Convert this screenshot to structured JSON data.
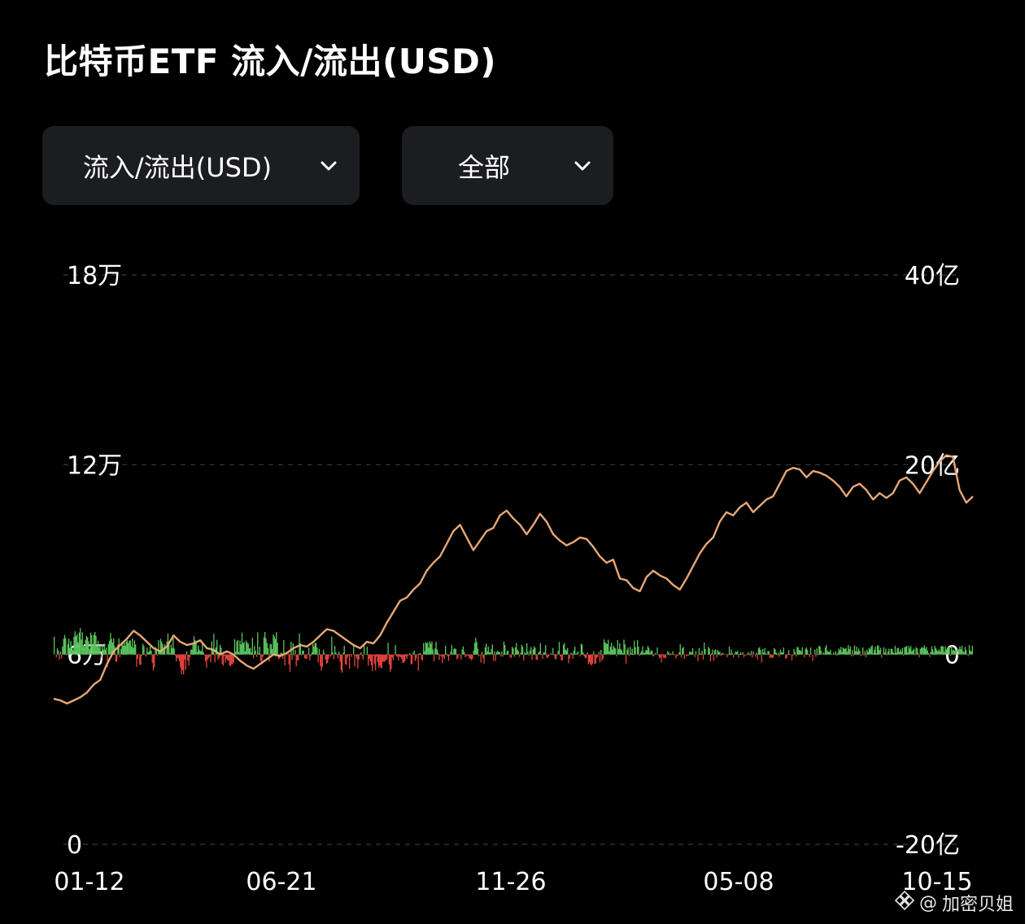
{
  "header": {
    "title": "比特币ETF 流入/流出(USD)"
  },
  "filters": {
    "metric_label": "流入/流出(USD)",
    "range_label": "全部"
  },
  "watermark": {
    "at": "@",
    "text": "加密贝姐"
  },
  "colors": {
    "inflow": "#5cc85f",
    "outflow": "#e8463f",
    "price_line": "#e7a777",
    "grid": "#3a3a3a",
    "dropdown_bg": "#1c1d20"
  },
  "chart_data": {
    "type": "bar",
    "left_axis": {
      "ticks": [
        "18万",
        "12万",
        "6万",
        "0"
      ],
      "tick_values": [
        180000,
        120000,
        60000,
        0
      ],
      "range": [
        0,
        180000
      ]
    },
    "right_axis": {
      "ticks": [
        "40亿",
        "20亿",
        "0",
        "-20亿"
      ],
      "tick_values": [
        4000000000,
        2000000000,
        0,
        -2000000000
      ],
      "range": [
        -2000000000,
        4000000000
      ]
    },
    "x_ticks": [
      "01-12",
      "06-21",
      "11-26",
      "05-08",
      "10-15"
    ],
    "grid": true,
    "series": [
      {
        "name": "",
        "kind": "bar",
        "axis": "right",
        "values": [
          188,
          0,
          -30,
          65,
          42,
          -55,
          30,
          -41,
          83,
          166,
          207,
          174,
          -9,
          110,
          168,
          70,
          141,
          77,
          51,
          188,
          245,
          194,
          216,
          128,
          232,
          279,
          158,
          235,
          94,
          79,
          156,
          195,
          182,
          140,
          59,
          230,
          205,
          100,
          205,
          237,
          199,
          90,
          146,
          77,
          99,
          -35,
          103,
          52,
          116,
          50,
          75,
          -131,
          110,
          145,
          227,
          163,
          126,
          172,
          85,
          -75,
          -74,
          103,
          170,
          -30,
          59,
          135,
          93,
          134,
          94,
          135,
          150,
          121,
          145,
          150,
          83,
          170,
          71,
          149,
          106,
          -130,
          -47,
          8,
          -111,
          -106,
          -12,
          113,
          88,
          -7,
          -22,
          73,
          23,
          32,
          85,
          41,
          -85,
          -169,
          -135,
          79,
          44,
          -13,
          152,
          38,
          165,
          137,
          108,
          48,
          106,
          0,
          138,
          222,
          105,
          14,
          104,
          66,
          201,
          64,
          -11,
          -74,
          -37,
          -42,
          -73,
          -137,
          -211,
          -164,
          -211,
          -55,
          -162,
          33,
          -65,
          -117,
          -29,
          52,
          51,
          103,
          193,
          153,
          128,
          25,
          95,
          51,
          36,
          38,
          118,
          25,
          -8,
          -69,
          -139,
          -54,
          -39,
          -22,
          -82,
          139,
          44,
          217,
          -83,
          75,
          154,
          -54,
          -38,
          104,
          73,
          -99,
          -118,
          -13,
          -86,
          -45,
          -59,
          -64,
          -116,
          -126,
          -104,
          -103,
          -85,
          162,
          30,
          139,
          152,
          25,
          147,
          106,
          231,
          120,
          133,
          33,
          147,
          125,
          113,
          63,
          70,
          25,
          176,
          -39,
          89,
          39,
          -26,
          233,
          13,
          82,
          -70,
          -104,
          -23,
          182,
          237,
          170,
          123,
          67,
          -77,
          112,
          109,
          58,
          211,
          190,
          164,
          236,
          125,
          -47,
          -42,
          17,
          17,
          -45,
          153,
          -115,
          14,
          3,
          17,
          -106,
          -185,
          134,
          -57,
          119,
          -17,
          49,
          -125,
          -62,
          -61,
          222,
          117,
          -9,
          43,
          41,
          -40,
          -42,
          -47,
          3,
          73,
          -62,
          -17,
          24,
          112,
          86,
          123,
          120,
          72,
          -84,
          59,
          -120,
          -170,
          -132,
          50,
          13,
          -52,
          -95,
          -89,
          -47,
          -4,
          -24,
          188,
          22,
          -51,
          88,
          20,
          5,
          -41,
          30,
          -79,
          -165,
          -192,
          18,
          91,
          -104,
          -109,
          -34,
          -12,
          -153,
          -4,
          -26,
          2,
          101,
          -127,
          -15,
          -46,
          -149,
          -55,
          -2,
          24,
          -21,
          -55,
          98,
          6,
          0,
          82,
          -119,
          -45,
          -71,
          -114,
          -175,
          -12,
          -98,
          -170,
          -22,
          -79,
          -138,
          -117,
          -142,
          -144,
          -75,
          -76,
          -74,
          -58,
          -52,
          125,
          -105,
          -184,
          -156,
          -30,
          -58,
          -7,
          100,
          -17,
          -25,
          -64,
          -19,
          -31,
          -43,
          -88,
          -87,
          -72,
          -20,
          -47,
          -9,
          -5,
          15,
          -104,
          -99,
          17,
          43,
          -69,
          -44,
          2,
          -171,
          12,
          15,
          -52,
          -64,
          121,
          35,
          128,
          118,
          130,
          73,
          141,
          115,
          136,
          53,
          -74,
          63,
          134,
          53,
          17,
          -58,
          -10,
          -18,
          -92,
          -26,
          -50,
          93,
          9,
          -20,
          -68,
          -13,
          31,
          101,
          11,
          58,
          65,
          55,
          -52,
          -38,
          7,
          -7,
          -53,
          52,
          86,
          28,
          -29,
          -15,
          -6,
          -16,
          -46,
          -44,
          -62,
          -44,
          43,
          121,
          176,
          132,
          61,
          -18,
          -6,
          -85,
          29,
          -38,
          -99,
          74,
          114,
          32,
          83,
          27,
          20,
          58,
          107,
          -67,
          34,
          -69,
          26,
          40,
          26,
          27,
          -23,
          31,
          -23,
          136,
          101,
          7,
          34,
          42,
          3,
          -31,
          -36,
          81,
          64,
          -25,
          75,
          122,
          50,
          35,
          -25,
          17,
          102,
          81,
          -65,
          26,
          9,
          118,
          29,
          -14,
          42,
          78,
          -55,
          54,
          86,
          71,
          -54,
          -59,
          18,
          33,
          118,
          6,
          -48,
          23,
          21,
          100,
          -33,
          -37,
          -20,
          -3,
          16,
          1,
          69,
          -12,
          -47,
          -52,
          -11,
          40,
          133,
          -20,
          -60,
          -64,
          102,
          121,
          52,
          44,
          70,
          -93,
          -41,
          12,
          17,
          -44,
          41,
          83,
          6,
          18,
          32,
          2,
          -22,
          114,
          105,
          20,
          -21,
          -40,
          -36,
          22,
          -103,
          -83,
          -105,
          -114,
          -96,
          34,
          -98,
          -95,
          -34,
          -27,
          30,
          -83,
          49,
          -69,
          -43,
          160,
          127,
          117,
          111,
          156,
          35,
          83,
          123,
          53,
          93,
          75,
          63,
          -21,
          152,
          54,
          117,
          59,
          41,
          15,
          156,
          108,
          -95,
          49,
          71,
          -18,
          81,
          14,
          61,
          6,
          146,
          77,
          1,
          153,
          82,
          -16,
          19,
          37,
          87,
          17,
          20,
          45,
          45,
          90,
          71,
          20,
          41,
          41,
          -21,
          -12,
          17,
          1,
          74,
          -9,
          -41,
          -31,
          -85,
          -8,
          -38,
          -37,
          -39,
          6,
          36,
          21,
          -12,
          12,
          3,
          32,
          -8,
          3,
          -42,
          -19,
          -7,
          23,
          110,
          -30,
          65,
          80,
          -47,
          2,
          -19,
          -12,
          -10,
          33,
          27,
          25,
          66,
          4,
          -27,
          37,
          -4,
          -70,
          68,
          9,
          9,
          40,
          -52,
          125,
          56,
          0,
          4,
          81,
          63,
          -71,
          10,
          51,
          -65,
          45,
          55,
          -33,
          47,
          30,
          27,
          -14,
          17,
          13,
          6,
          0,
          7,
          -29,
          -6,
          85,
          11,
          53,
          11,
          -32,
          8,
          34,
          26,
          38,
          -34,
          6,
          24,
          7,
          24,
          -31,
          -10,
          -8,
          -7,
          23,
          11,
          -14,
          37,
          -31,
          34,
          1,
          -24,
          20,
          -52,
          65,
          77,
          46,
          -86,
          59,
          20,
          67,
          13,
          4,
          35,
          36,
          -38,
          -31,
          -39,
          -32,
          68,
          55,
          20,
          -9,
          19,
          -25,
          50,
          26,
          22,
          74,
          0,
          -46,
          -38,
          4,
          47,
          -8,
          -3,
          -64,
          -12,
          58,
          28,
          -23,
          81,
          73,
          48,
          44,
          34,
          76,
          -3,
          -30,
          60,
          75,
          48,
          -6,
          -29,
          74,
          -3,
          -68,
          0,
          51,
          -26,
          67,
          -4,
          92,
          85,
          41,
          -3,
          24,
          11,
          74,
          99,
          39,
          29,
          29,
          49,
          8,
          3,
          24,
          5,
          35,
          -14,
          20,
          63,
          46,
          80,
          27,
          73,
          62,
          60,
          68,
          27,
          99,
          57,
          86,
          -21,
          45,
          -16,
          96,
          35,
          82,
          31,
          64,
          39,
          -18,
          -9,
          75,
          -10,
          37,
          -30,
          50,
          26,
          71,
          56,
          86,
          97,
          13,
          49,
          84,
          13,
          94,
          95,
          45,
          70,
          -31,
          2,
          77,
          21,
          62,
          -9,
          30,
          61,
          9,
          61,
          58,
          27,
          13,
          92,
          20,
          66,
          72,
          28,
          53,
          30,
          70,
          -11,
          76,
          85,
          90,
          22,
          89,
          62,
          90,
          34,
          47,
          61,
          -8,
          77,
          65,
          18,
          -31,
          58,
          72,
          75,
          71,
          95,
          61,
          79,
          43,
          15,
          -26,
          25,
          86,
          54,
          20,
          92,
          66,
          46,
          36,
          55,
          34,
          87,
          90,
          84,
          27,
          85,
          50,
          63,
          79,
          81,
          -19,
          92,
          44,
          53,
          40,
          50,
          52,
          -9,
          55,
          88,
          57,
          93,
          36,
          22,
          79,
          46,
          7,
          -18,
          99,
          45,
          32,
          93
        ],
        "unit": "百万美元 (估算)"
      },
      {
        "name": "",
        "kind": "line",
        "axis": "left",
        "values": [
          46000,
          45500,
          44500,
          45500,
          46500,
          48000,
          50500,
          52000,
          57000,
          61000,
          63000,
          65000,
          67500,
          66000,
          64000,
          62000,
          61000,
          62500,
          66000,
          64000,
          63000,
          63500,
          64500,
          62000,
          61500,
          60000,
          61000,
          60000,
          58000,
          56500,
          55500,
          57000,
          58500,
          60000,
          59500,
          60500,
          62000,
          63000,
          62500,
          64000,
          66000,
          68000,
          67500,
          66000,
          64500,
          63000,
          62000,
          64000,
          63500,
          66000,
          70000,
          73500,
          77000,
          78000,
          80500,
          82500,
          86500,
          89000,
          91000,
          95000,
          99000,
          101000,
          97000,
          93000,
          96000,
          99000,
          100000,
          104000,
          105500,
          103000,
          101000,
          98000,
          101000,
          104500,
          102000,
          98000,
          96000,
          94500,
          95500,
          97000,
          96500,
          94000,
          91000,
          89000,
          90000,
          84000,
          83500,
          81000,
          80000,
          84500,
          86500,
          85000,
          84000,
          82000,
          80500,
          84000,
          88000,
          92000,
          95000,
          97000,
          102000,
          105000,
          104000,
          106500,
          108000,
          105000,
          107000,
          109000,
          110000,
          114000,
          118000,
          119000,
          118500,
          116000,
          118000,
          117500,
          116500,
          115000,
          113000,
          110000,
          113000,
          114000,
          112000,
          109000,
          111000,
          109500,
          111000,
          115000,
          116000,
          114000,
          111000,
          114500,
          118000,
          121000,
          123000,
          122500,
          112000,
          108000,
          110000
        ],
        "unit": "USD (估算)"
      }
    ]
  }
}
